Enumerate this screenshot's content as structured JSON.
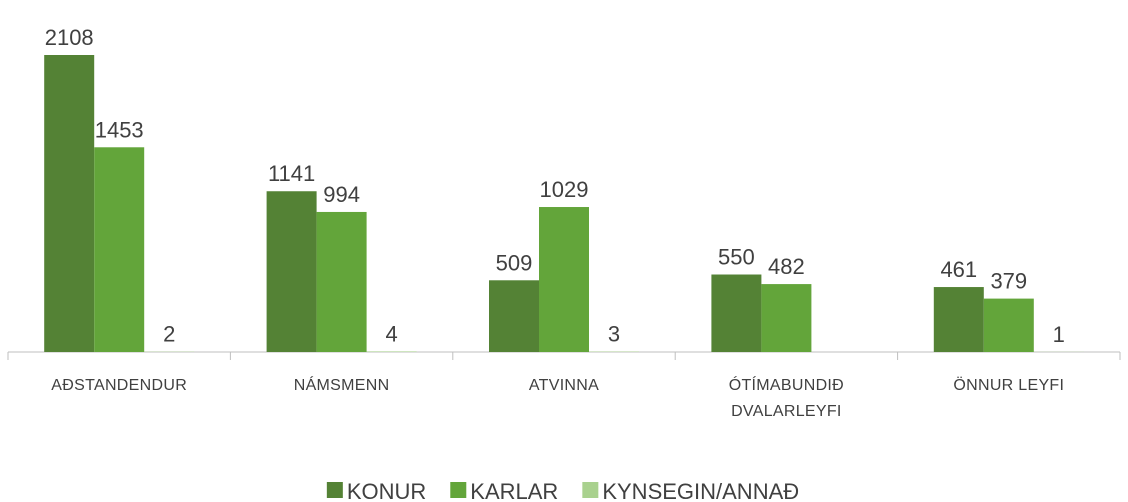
{
  "chart_data": {
    "type": "bar",
    "categories": [
      "AÐSTANDENDUR",
      "NÁMSMENN",
      "ATVINNA",
      "ÓTÍMABUNDIÐ DVALARLEYFI",
      "ÖNNUR LEYFI"
    ],
    "series": [
      {
        "name": "KONUR",
        "color": "#548235",
        "values": [
          2108,
          1141,
          509,
          550,
          461
        ]
      },
      {
        "name": "KARLAR",
        "color": "#63a53a",
        "values": [
          1453,
          994,
          1029,
          482,
          379
        ]
      },
      {
        "name": "KYNSEGIN/ANNAÐ",
        "color": "#a9d18e",
        "values": [
          2,
          4,
          3,
          null,
          1
        ]
      }
    ]
  }
}
